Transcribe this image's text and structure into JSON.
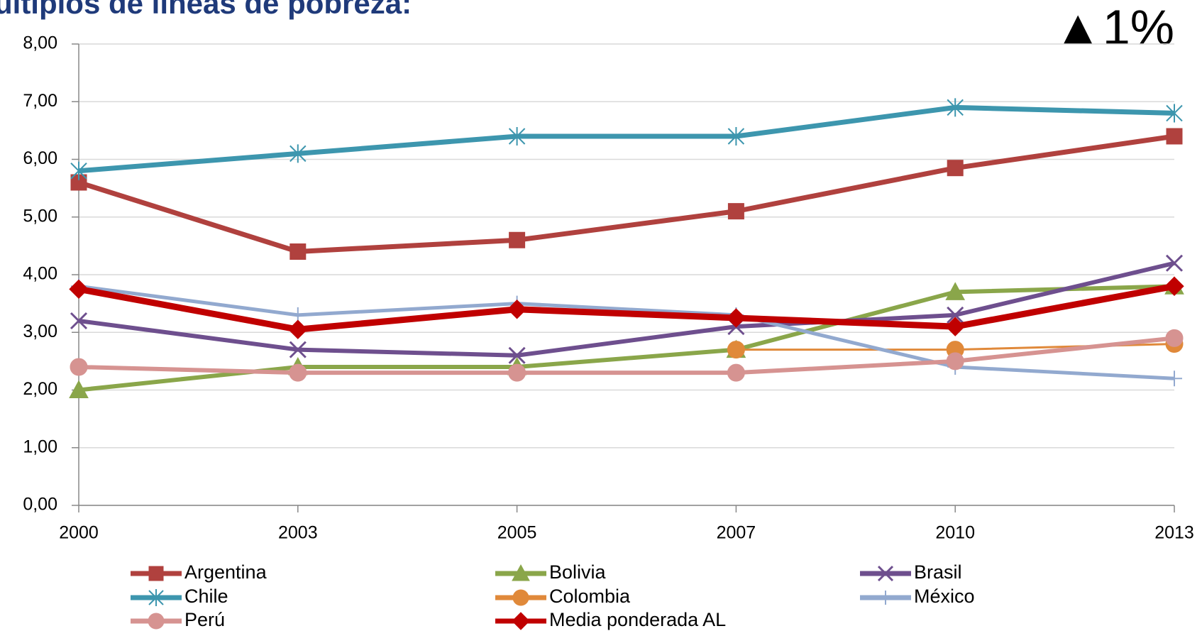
{
  "chart_data": {
    "type": "line",
    "title": "últiplos de líneas de pobreza:",
    "annotation": "▲1%",
    "categories": [
      "2000",
      "2003",
      "2005",
      "2007",
      "2010",
      "2013"
    ],
    "ylim": [
      0,
      8
    ],
    "yticks": [
      {
        "value": 0,
        "label": "0,00"
      },
      {
        "value": 1,
        "label": "1,00"
      },
      {
        "value": 2,
        "label": "2,00"
      },
      {
        "value": 3,
        "label": "3,00"
      },
      {
        "value": 4,
        "label": "4,00"
      },
      {
        "value": 5,
        "label": "5,00"
      },
      {
        "value": 6,
        "label": "6,00"
      },
      {
        "value": 7,
        "label": "7,00"
      },
      {
        "value": 8,
        "label": "8,00"
      }
    ],
    "grid": true,
    "legend": "bottom",
    "series": [
      {
        "name": "Argentina",
        "color": "#b0413e",
        "marker": "square",
        "values": [
          5.6,
          4.4,
          4.6,
          5.1,
          5.85,
          6.4
        ]
      },
      {
        "name": "Bolivia",
        "color": "#8aa64a",
        "marker": "triangle",
        "values": [
          2.0,
          2.4,
          2.4,
          2.7,
          3.7,
          3.8
        ]
      },
      {
        "name": "Brasil",
        "color": "#6e4f8e",
        "marker": "x",
        "values": [
          3.2,
          2.7,
          2.6,
          3.1,
          3.3,
          4.2
        ]
      },
      {
        "name": "Chile",
        "color": "#3d96ae",
        "marker": "star",
        "values": [
          5.8,
          6.1,
          6.4,
          6.4,
          6.9,
          6.8
        ]
      },
      {
        "name": "Colombia",
        "color": "#e0893a",
        "marker": "circle",
        "values": [
          null,
          null,
          null,
          2.7,
          2.7,
          2.8
        ]
      },
      {
        "name": "México",
        "color": "#92a9cf",
        "marker": "plus",
        "values": [
          3.8,
          3.3,
          3.5,
          3.3,
          2.4,
          2.2
        ]
      },
      {
        "name": "Perú",
        "color": "#d69391",
        "marker": "circle",
        "values": [
          2.4,
          2.3,
          2.3,
          2.3,
          2.5,
          2.9
        ]
      },
      {
        "name": "Media ponderada AL",
        "color": "#c00000",
        "marker": "diamond",
        "values": [
          3.75,
          3.05,
          3.4,
          3.25,
          3.1,
          3.8
        ]
      }
    ]
  }
}
